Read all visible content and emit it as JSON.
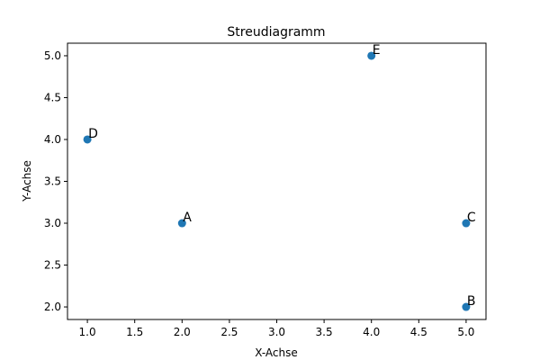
{
  "chart_data": {
    "type": "scatter",
    "title": "Streudiagramm",
    "xlabel": "X-Achse",
    "ylabel": "Y-Achse",
    "xlim": [
      0.79,
      5.21
    ],
    "ylim": [
      1.85,
      5.15
    ],
    "xticks": [
      "1.0",
      "1.5",
      "2.0",
      "2.5",
      "3.0",
      "3.5",
      "4.0",
      "4.5",
      "5.0"
    ],
    "yticks": [
      "2.0",
      "2.5",
      "3.0",
      "3.5",
      "4.0",
      "4.5",
      "5.0"
    ],
    "grid": false,
    "color": "#1f77b4",
    "points": [
      {
        "label": "A",
        "x": 2,
        "y": 3
      },
      {
        "label": "B",
        "x": 5,
        "y": 2
      },
      {
        "label": "C",
        "x": 5,
        "y": 3
      },
      {
        "label": "D",
        "x": 1,
        "y": 4
      },
      {
        "label": "E",
        "x": 4,
        "y": 5
      }
    ]
  }
}
